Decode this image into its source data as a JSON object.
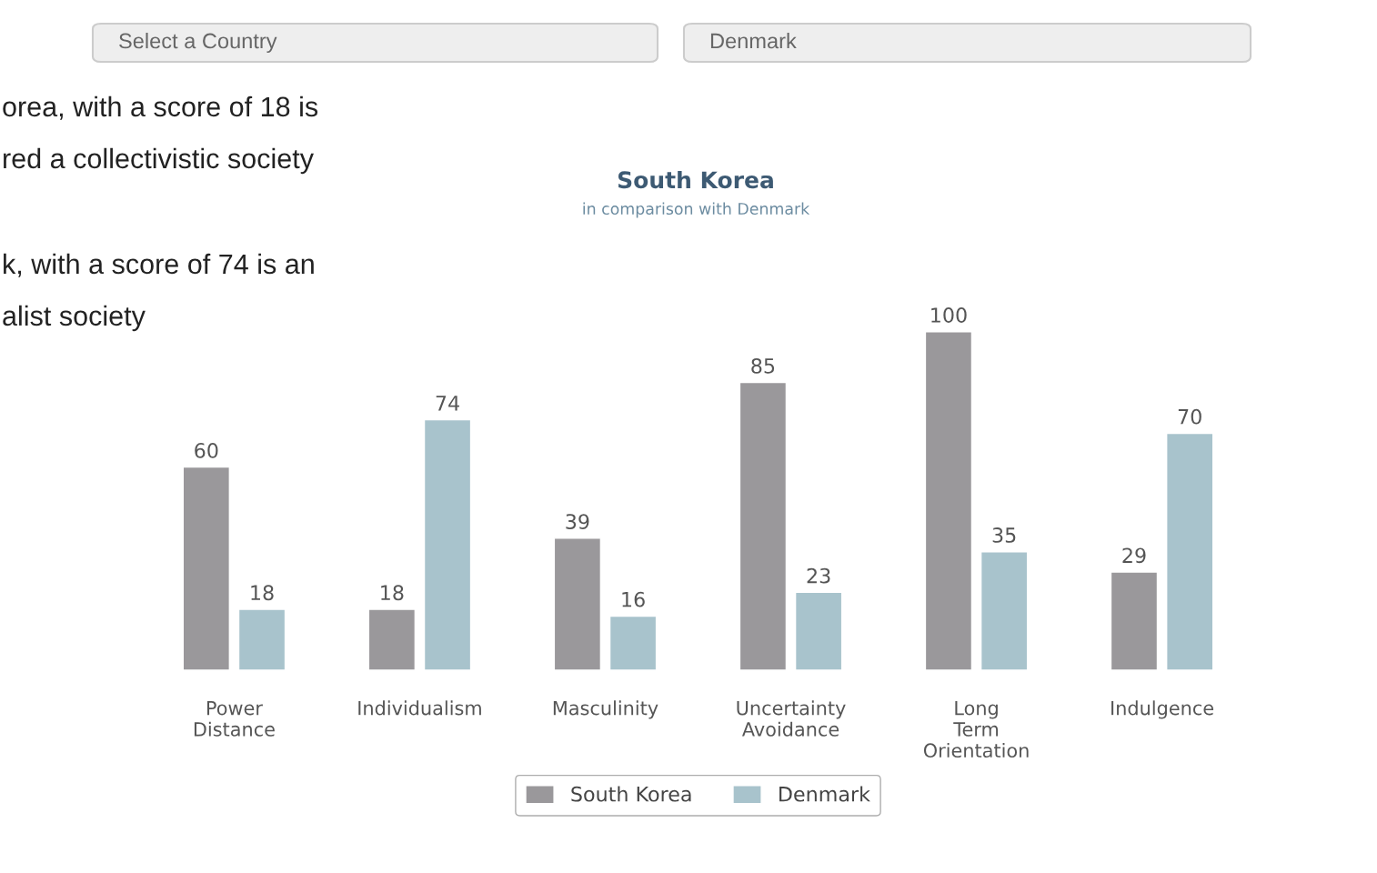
{
  "chart_data": {
    "type": "bar",
    "title": "South Korea",
    "subtitle": "in comparison with Denmark",
    "categories": [
      "Power\nDistance",
      "Individualism",
      "Masculinity",
      "Uncertainty\nAvoidance",
      "Long\nTerm\nOrientation",
      "Indulgence"
    ],
    "series": [
      {
        "name": "South Korea",
        "color": "#9a989b",
        "values": [
          60,
          18,
          39,
          85,
          100,
          29
        ]
      },
      {
        "name": "Denmark",
        "color": "#a8c3cc",
        "values": [
          18,
          74,
          16,
          23,
          35,
          70
        ]
      }
    ],
    "data_labels": true,
    "legend": "bottom",
    "grid": false,
    "annotations": [
      "Select a Country",
      "Denmark",
      "orea, with a score of 18 is",
      "red a collectivistic society",
      "k, with a score of 74 is an",
      "alist society"
    ]
  }
}
